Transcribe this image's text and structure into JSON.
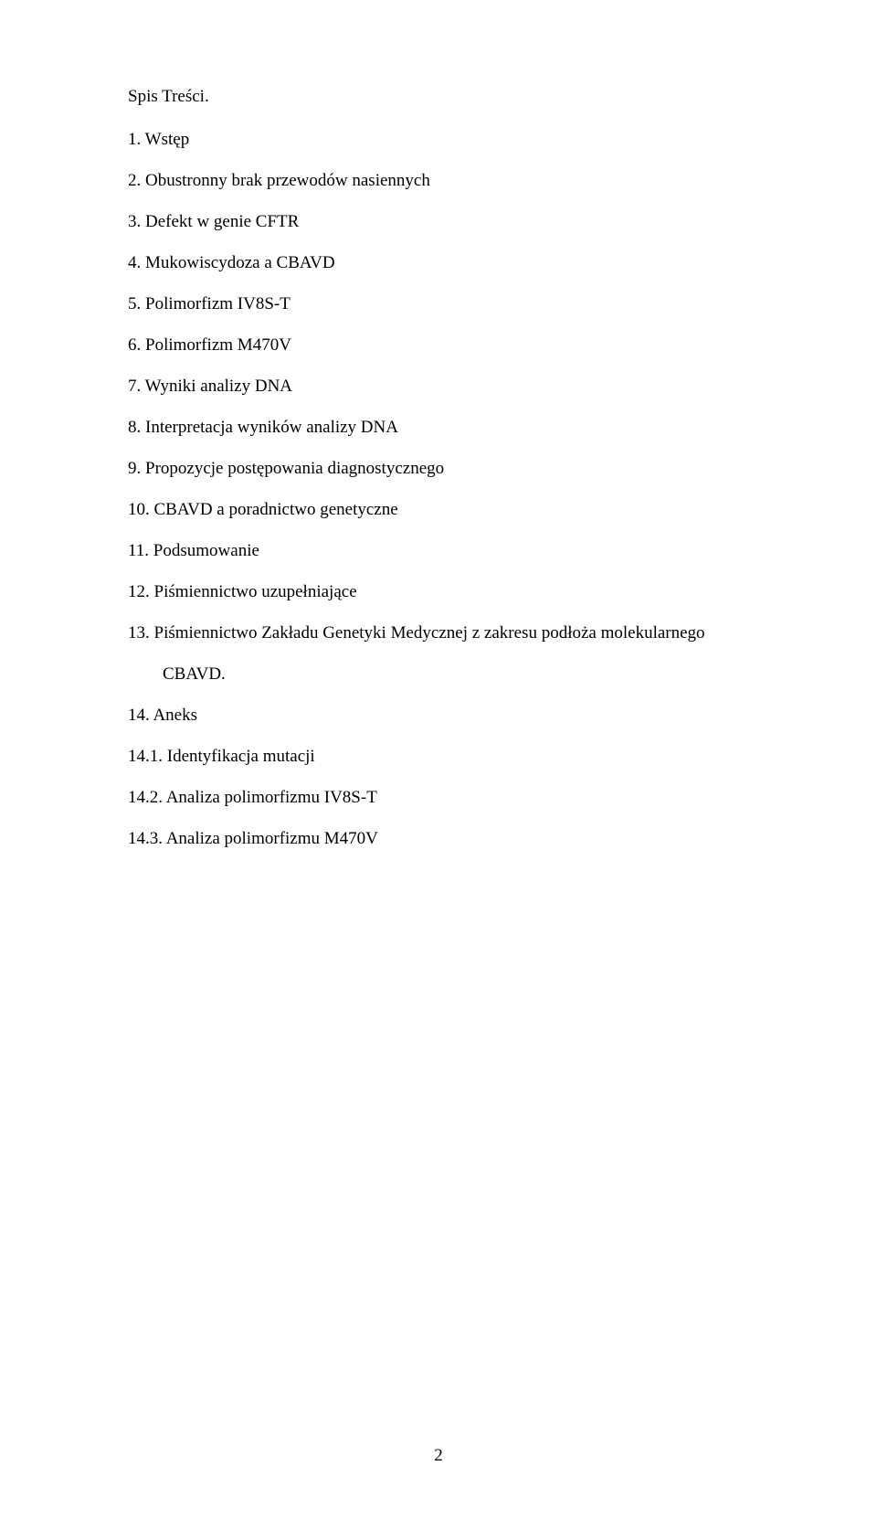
{
  "document": {
    "title": "Spis Treści.",
    "items": [
      {
        "text": "1. Wstęp",
        "indented": false
      },
      {
        "text": "2. Obustronny brak przewodów nasiennych",
        "indented": false
      },
      {
        "text": "3. Defekt w genie CFTR",
        "indented": false
      },
      {
        "text": "4. Mukowiscydoza a CBAVD",
        "indented": false
      },
      {
        "text": "5. Polimorfizm IV8S-T",
        "indented": false
      },
      {
        "text": "6. Polimorfizm M470V",
        "indented": false
      },
      {
        "text": "7. Wyniki analizy DNA",
        "indented": false
      },
      {
        "text": "8. Interpretacja wyników analizy DNA",
        "indented": false
      },
      {
        "text": "9. Propozycje postępowania diagnostycznego",
        "indented": false
      },
      {
        "text": "10. CBAVD a poradnictwo genetyczne",
        "indented": false
      },
      {
        "text": "11. Podsumowanie",
        "indented": false
      },
      {
        "text": "12. Piśmiennictwo uzupełniające",
        "indented": false
      },
      {
        "text": "13. Piśmiennictwo Zakładu Genetyki Medycznej z zakresu podłoża molekularnego",
        "indented": false
      },
      {
        "text": "CBAVD.",
        "indented": true
      },
      {
        "text": "14. Aneks",
        "indented": false
      },
      {
        "text": "14.1. Identyfikacja mutacji",
        "indented": false
      },
      {
        "text": "14.2. Analiza polimorfizmu IV8S-T",
        "indented": false
      },
      {
        "text": "14.3. Analiza polimorfizmu M470V",
        "indented": false
      }
    ],
    "page_number": "2",
    "styles": {
      "background_color": "#ffffff",
      "text_color": "#000000",
      "font_family": "Times New Roman",
      "font_size_pt": 14,
      "line_spacing": 2.0
    }
  }
}
